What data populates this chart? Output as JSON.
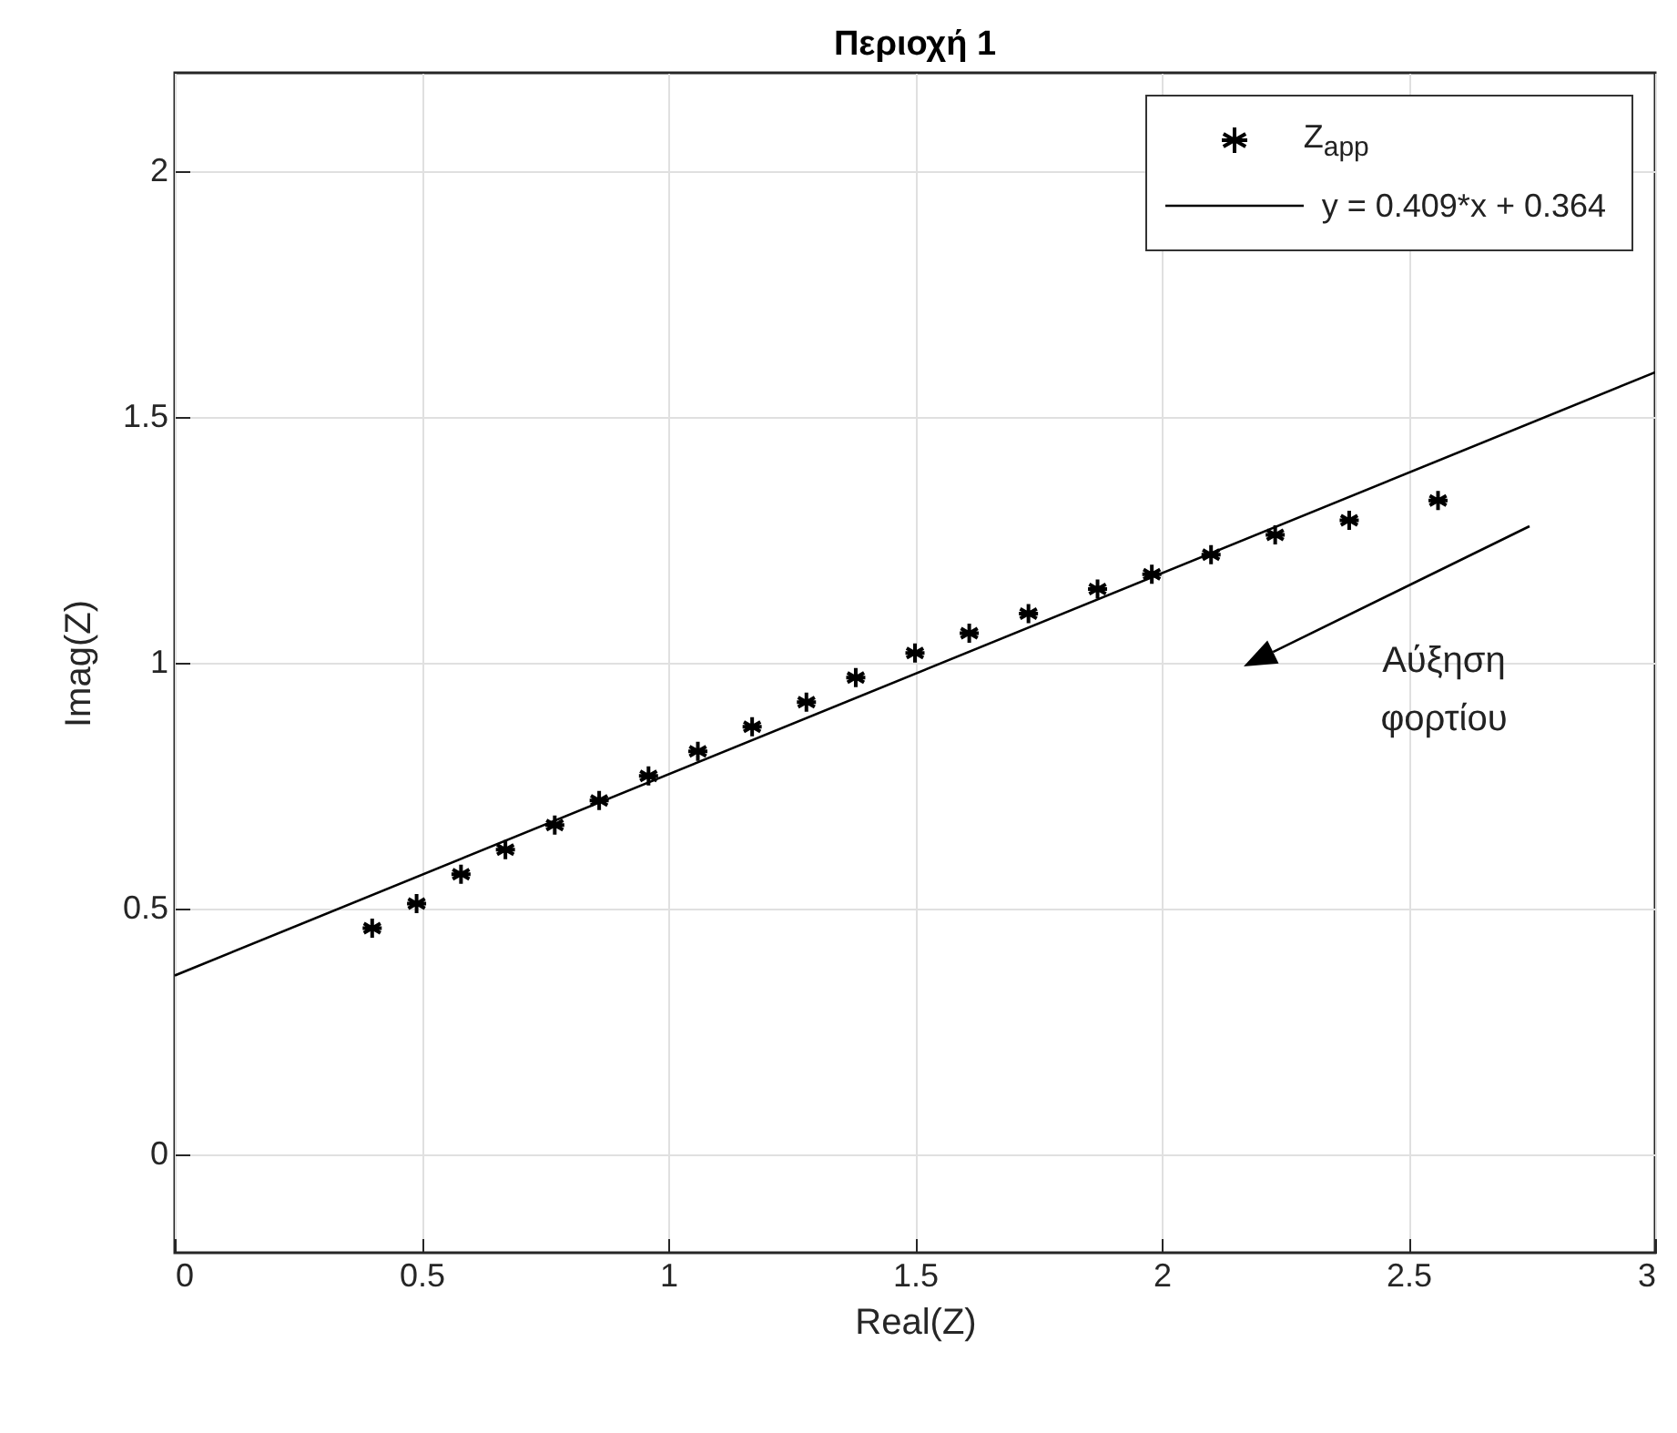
{
  "chart_data": {
    "type": "scatter",
    "title": "Περιοχή 1",
    "xlabel": "Real(Z)",
    "ylabel": "Imag(Z)",
    "xlim": [
      0,
      3
    ],
    "ylim": [
      -0.2,
      2.2
    ],
    "xticks": [
      0,
      0.5,
      1,
      1.5,
      2,
      2.5,
      3
    ],
    "yticks": [
      0,
      0.5,
      1,
      1.5,
      2
    ],
    "grid": true,
    "legend": "top right",
    "series": [
      {
        "name": "Z$_{app}$",
        "color": "#000000",
        "marker": "cross",
        "x": [
          0.4,
          0.49,
          0.58,
          0.67,
          0.77,
          0.86,
          0.96,
          1.06,
          1.17,
          1.28,
          1.38,
          1.5,
          1.61,
          1.73,
          1.87,
          1.98,
          2.1,
          2.23,
          2.38,
          2.56
        ],
        "values": [
          0.46,
          0.51,
          0.57,
          0.62,
          0.67,
          0.72,
          0.77,
          0.82,
          0.87,
          0.92,
          0.97,
          1.02,
          1.06,
          1.1,
          1.15,
          1.18,
          1.22,
          1.26,
          1.29,
          1.33
        ]
      },
      {
        "name": "y = 0.409*x + 0.364",
        "type": "line",
        "color": "#000000",
        "line_style": "solid",
        "x": [
          0,
          3
        ],
        "values": [
          0.364,
          1.591
        ]
      }
    ],
    "annotations": [
      "Αύξηση\nφορτίου"
    ]
  }
}
